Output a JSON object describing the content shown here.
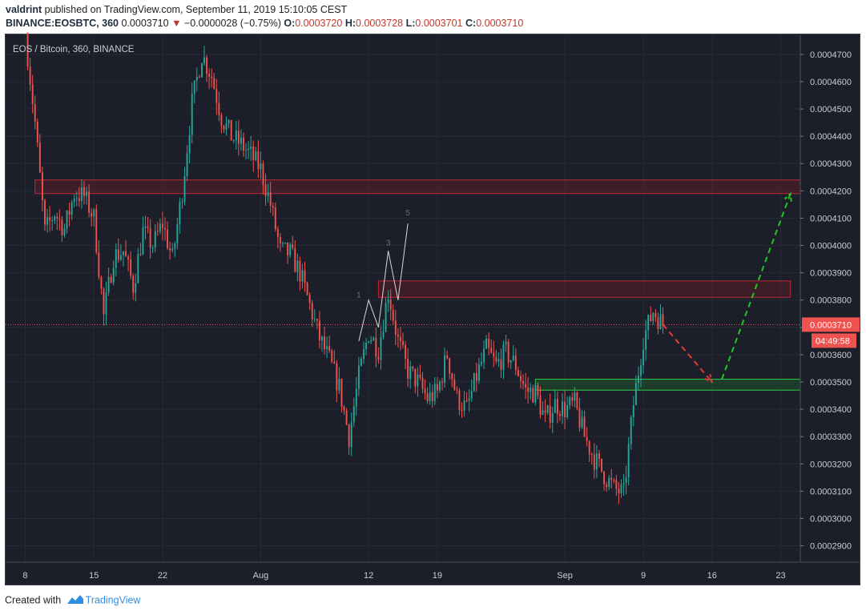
{
  "header": {
    "author": "valdrint",
    "published_text": " published on TradingView.com, September 11, 2019 15:10:05 CEST",
    "symbol_label": "BINANCE:EOSBTC, 360",
    "last_price": "0.0003710",
    "change_arrow": "▼",
    "change": "−0.0000028 (−0.75%)",
    "o_label": "O:",
    "o_value": "0.0003720",
    "h_label": "H:",
    "h_value": "0.0003728",
    "l_label": "L:",
    "l_value": "0.0003701",
    "c_label": "C:",
    "c_value": "0.0003710"
  },
  "footer": {
    "created_with": "Created with",
    "brand": "TradingView",
    "logo_icon": "tradingview-logo-icon"
  },
  "colors": {
    "background": "#1c1f29",
    "up": "#26a69a",
    "down": "#ef5350",
    "resistance_zone": "#8b1a23",
    "support_zone": "#1e7d32",
    "bearish_projection": "#e53935",
    "bullish_projection": "#1ec81e",
    "price_label_bg": "#ef5350"
  },
  "chart_data": {
    "type": "candlestick",
    "title": "EOS / Bitcoin, 360, BINANCE",
    "x_axis": {
      "type": "date",
      "range": [
        "2019-07-06",
        "2019-09-25"
      ],
      "ticks": [
        {
          "date": "2019-07-08",
          "label": "8"
        },
        {
          "date": "2019-07-15",
          "label": "15"
        },
        {
          "date": "2019-07-22",
          "label": "22"
        },
        {
          "date": "2019-08-01",
          "label": "Aug"
        },
        {
          "date": "2019-08-12",
          "label": "12"
        },
        {
          "date": "2019-08-19",
          "label": "19"
        },
        {
          "date": "2019-09-01",
          "label": "Sep"
        },
        {
          "date": "2019-09-09",
          "label": "9"
        },
        {
          "date": "2019-09-16",
          "label": "16"
        },
        {
          "date": "2019-09-23",
          "label": "23"
        }
      ]
    },
    "y_axis": {
      "range": [
        0.000284,
        0.000477
      ],
      "ticks": [
        "0.0004700",
        "0.0004600",
        "0.0004500",
        "0.0004400",
        "0.0004300",
        "0.0004200",
        "0.0004100",
        "0.0004000",
        "0.0003900",
        "0.0003800",
        "0.0003700",
        "0.0003600",
        "0.0003500",
        "0.0003400",
        "0.0003300",
        "0.0003200",
        "0.0003100",
        "0.0003000",
        "0.0002900"
      ]
    },
    "price_path": [
      {
        "date": "2019-07-08",
        "close": 0.000478
      },
      {
        "date": "2019-07-09",
        "close": 0.000445
      },
      {
        "date": "2019-07-10",
        "close": 0.000405
      },
      {
        "date": "2019-07-11",
        "close": 0.000412
      },
      {
        "date": "2019-07-12",
        "close": 0.000406
      },
      {
        "date": "2019-07-13",
        "close": 0.000419
      },
      {
        "date": "2019-07-14",
        "close": 0.000418
      },
      {
        "date": "2019-07-15",
        "close": 0.00041
      },
      {
        "date": "2019-07-16",
        "close": 0.000374
      },
      {
        "date": "2019-07-17",
        "close": 0.000396
      },
      {
        "date": "2019-07-18",
        "close": 0.000398
      },
      {
        "date": "2019-07-19",
        "close": 0.000385
      },
      {
        "date": "2019-07-20",
        "close": 0.000405
      },
      {
        "date": "2019-07-21",
        "close": 0.0004
      },
      {
        "date": "2019-07-22",
        "close": 0.000408
      },
      {
        "date": "2019-07-23",
        "close": 0.000395
      },
      {
        "date": "2019-07-24",
        "close": 0.00042
      },
      {
        "date": "2019-07-25",
        "close": 0.000452
      },
      {
        "date": "2019-07-26",
        "close": 0.00047
      },
      {
        "date": "2019-07-27",
        "close": 0.000462
      },
      {
        "date": "2019-07-28",
        "close": 0.000447
      },
      {
        "date": "2019-07-29",
        "close": 0.00044
      },
      {
        "date": "2019-07-30",
        "close": 0.000437
      },
      {
        "date": "2019-07-31",
        "close": 0.000433
      },
      {
        "date": "2019-08-01",
        "close": 0.000428
      },
      {
        "date": "2019-08-02",
        "close": 0.000415
      },
      {
        "date": "2019-08-03",
        "close": 0.000398
      },
      {
        "date": "2019-08-04",
        "close": 0.000397
      },
      {
        "date": "2019-08-05",
        "close": 0.00039
      },
      {
        "date": "2019-08-06",
        "close": 0.000378
      },
      {
        "date": "2019-08-07",
        "close": 0.000366
      },
      {
        "date": "2019-08-08",
        "close": 0.000358
      },
      {
        "date": "2019-08-09",
        "close": 0.000348
      },
      {
        "date": "2019-08-10",
        "close": 0.00033
      },
      {
        "date": "2019-08-11",
        "close": 0.000352
      },
      {
        "date": "2019-08-12",
        "close": 0.000368
      },
      {
        "date": "2019-08-13",
        "close": 0.000362
      },
      {
        "date": "2019-08-14",
        "close": 0.000383
      },
      {
        "date": "2019-08-15",
        "close": 0.000365
      },
      {
        "date": "2019-08-16",
        "close": 0.000354
      },
      {
        "date": "2019-08-17",
        "close": 0.00035
      },
      {
        "date": "2019-08-18",
        "close": 0.000344
      },
      {
        "date": "2019-08-19",
        "close": 0.000346
      },
      {
        "date": "2019-08-20",
        "close": 0.00036
      },
      {
        "date": "2019-08-21",
        "close": 0.000344
      },
      {
        "date": "2019-08-22",
        "close": 0.00034
      },
      {
        "date": "2019-08-23",
        "close": 0.000352
      },
      {
        "date": "2019-08-24",
        "close": 0.000362
      },
      {
        "date": "2019-08-25",
        "close": 0.000356
      },
      {
        "date": "2019-08-26",
        "close": 0.000361
      },
      {
        "date": "2019-08-27",
        "close": 0.000356
      },
      {
        "date": "2019-08-28",
        "close": 0.000347
      },
      {
        "date": "2019-08-29",
        "close": 0.000346
      },
      {
        "date": "2019-08-30",
        "close": 0.000336
      },
      {
        "date": "2019-08-31",
        "close": 0.000342
      },
      {
        "date": "2019-09-01",
        "close": 0.00034
      },
      {
        "date": "2019-09-02",
        "close": 0.000342
      },
      {
        "date": "2019-09-03",
        "close": 0.00033
      },
      {
        "date": "2019-09-04",
        "close": 0.000322
      },
      {
        "date": "2019-09-05",
        "close": 0.000316
      },
      {
        "date": "2019-09-06",
        "close": 0.000311
      },
      {
        "date": "2019-09-07",
        "close": 0.000309
      },
      {
        "date": "2019-09-08",
        "close": 0.000342
      },
      {
        "date": "2019-09-09",
        "close": 0.000366
      },
      {
        "date": "2019-09-10",
        "close": 0.000376
      },
      {
        "date": "2019-09-11",
        "close": 0.000371
      }
    ],
    "last_price_label": "0.0003710",
    "countdown_label": "04:49:58",
    "zones": [
      {
        "name": "resistance-upper",
        "from_date": "2019-07-09",
        "to_date": "2019-09-25",
        "low": 0.000419,
        "high": 0.000424
      },
      {
        "name": "resistance-middle",
        "from_date": "2019-08-13",
        "to_date": "2019-09-24",
        "low": 0.000381,
        "high": 0.000387
      },
      {
        "name": "support",
        "from_date": "2019-08-29",
        "to_date": "2019-09-25",
        "low": 0.000347,
        "high": 0.000351
      }
    ],
    "wave_labels": [
      {
        "text": "1",
        "date": "2019-08-11",
        "price": 0.000381
      },
      {
        "text": "3",
        "date": "2019-08-14",
        "price": 0.0004
      },
      {
        "text": "5",
        "date": "2019-08-16",
        "price": 0.000411
      }
    ],
    "wave_path": [
      {
        "date": "2019-08-11",
        "price": 0.000365
      },
      {
        "date": "2019-08-12",
        "price": 0.00038
      },
      {
        "date": "2019-08-13",
        "price": 0.00037
      },
      {
        "date": "2019-08-14",
        "price": 0.000398
      },
      {
        "date": "2019-08-15",
        "price": 0.00038
      },
      {
        "date": "2019-08-16",
        "price": 0.000408
      }
    ],
    "projections": [
      {
        "name": "bearish",
        "points": [
          {
            "date": "2019-09-11",
            "price": 0.000371
          },
          {
            "date": "2019-09-16",
            "price": 0.00035
          }
        ]
      },
      {
        "name": "bullish",
        "points": [
          {
            "date": "2019-09-17",
            "price": 0.000351
          },
          {
            "date": "2019-09-24",
            "price": 0.000419
          }
        ]
      }
    ]
  }
}
